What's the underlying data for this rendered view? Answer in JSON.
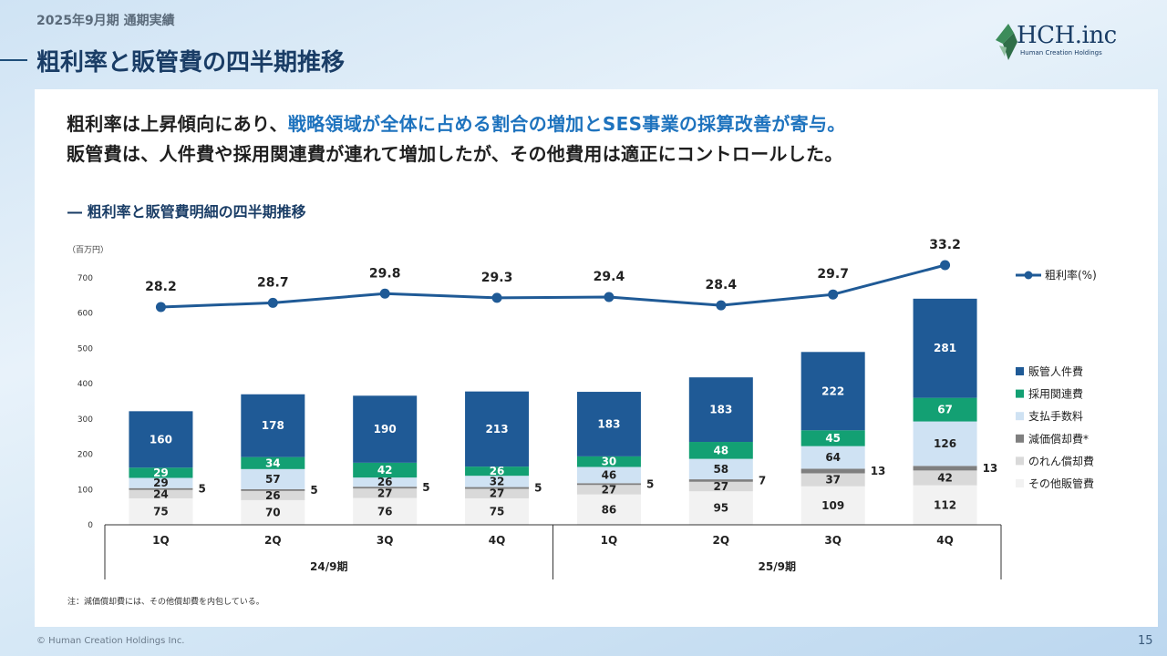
{
  "header": {
    "subtitle": "2025年9月期 通期実績",
    "title": "粗利率と販管費の四半期推移"
  },
  "logo": {
    "name": "HCH.inc",
    "sub": "Human Creation Holdings"
  },
  "lead": {
    "line1_a": "粗利率は上昇傾向にあり、",
    "line1_b": "戦略領域が全体に占める割合の増加とSES事業の採算改善が寄与。",
    "line2": "販管費は、人件費や採用関連費が連れて増加したが、その他費用は適正にコントロールした。"
  },
  "section_title": "粗利率と販管費明細の四半期推移",
  "note": "注：減価償却費には、その他償却費を内包している。",
  "footer": {
    "copyright": "© Human Creation Holdings Inc.",
    "page": "15"
  },
  "chart_data": {
    "type": "bar",
    "stacked": true,
    "unit_label": "（百万円）",
    "categories": [
      "1Q",
      "2Q",
      "3Q",
      "4Q",
      "1Q",
      "2Q",
      "3Q",
      "4Q"
    ],
    "groups": [
      {
        "label": "24/9期",
        "span": [
          0,
          3
        ]
      },
      {
        "label": "25/9期",
        "span": [
          4,
          7
        ]
      }
    ],
    "ylim": [
      0,
      700
    ],
    "yticks": [
      0,
      100,
      200,
      300,
      400,
      500,
      600,
      700
    ],
    "series": [
      {
        "name": "その他販管費",
        "color": "#f2f2f2",
        "label_color": "#222222",
        "values": [
          75,
          70,
          76,
          75,
          86,
          95,
          109,
          112
        ]
      },
      {
        "name": "のれん償却費",
        "color": "#d9d9d9",
        "label_color": "#222222",
        "values": [
          24,
          26,
          27,
          27,
          27,
          27,
          37,
          42
        ]
      },
      {
        "name": "減価償却費*",
        "color": "#7f7f7f",
        "label_color": "#222222",
        "label_outside": true,
        "values": [
          5,
          5,
          5,
          5,
          5,
          7,
          13,
          13
        ]
      },
      {
        "name": "支払手数料",
        "color": "#cfe2f3",
        "label_color": "#222222",
        "values": [
          29,
          57,
          26,
          32,
          46,
          58,
          64,
          126
        ]
      },
      {
        "name": "採用関連費",
        "color": "#13a073",
        "label_color": "#ffffff",
        "values": [
          29,
          34,
          42,
          26,
          30,
          48,
          45,
          67
        ]
      },
      {
        "name": "販管人件費",
        "color": "#1f5a96",
        "label_color": "#ffffff",
        "values": [
          160,
          178,
          190,
          213,
          183,
          183,
          222,
          281
        ]
      }
    ],
    "line_series": {
      "name": "粗利率(%)",
      "color": "#1f5a96",
      "values": [
        28.2,
        28.7,
        29.8,
        29.3,
        29.4,
        28.4,
        29.7,
        33.2
      ]
    },
    "legend_position": "right"
  }
}
